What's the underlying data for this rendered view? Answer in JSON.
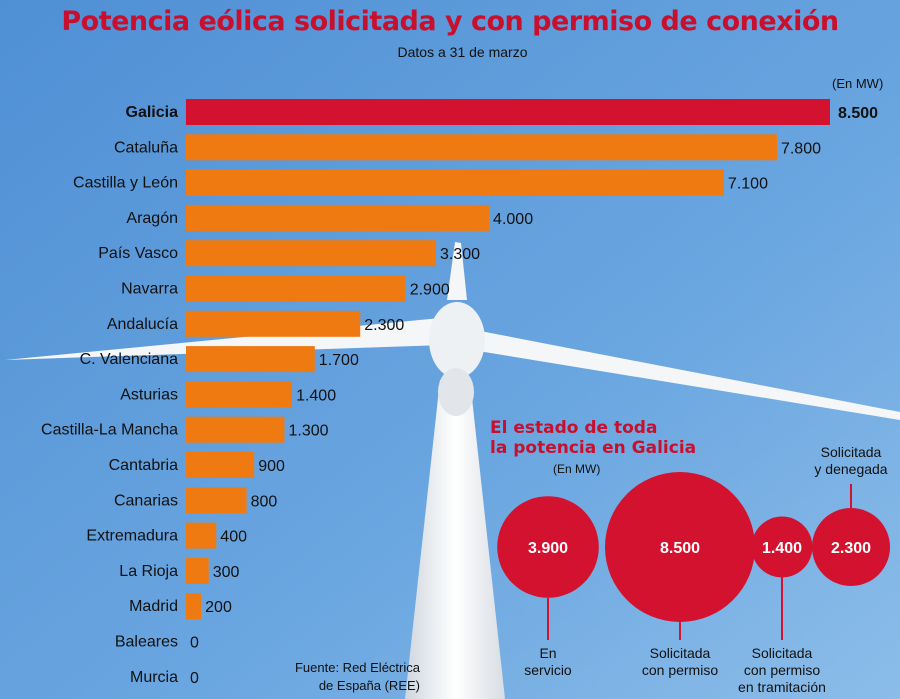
{
  "title": "Potencia eólica solicitada y con permiso de conexión",
  "subtitle": "Datos a 31 de marzo",
  "unit": "(En MW)",
  "source_line1": "Fuente: Red Eléctrica",
  "source_line2": "de España (REE)",
  "colors": {
    "highlight": "#d2122e",
    "bar": "#f07a12",
    "title": "#c8102e",
    "sky": "#5a9ad8"
  },
  "chart_data": {
    "type": "bar",
    "orientation": "horizontal",
    "categories": [
      "Galicia",
      "Cataluña",
      "Castilla y León",
      "Aragón",
      "País Vasco",
      "Navarra",
      "Andalucía",
      "C. Valenciana",
      "Asturias",
      "Castilla-La Mancha",
      "Cantabria",
      "Canarias",
      "Extremadura",
      "La Rioja",
      "Madrid",
      "Baleares",
      "Murcia"
    ],
    "values": [
      8500,
      7800,
      7100,
      4000,
      3300,
      2900,
      2300,
      1700,
      1400,
      1300,
      900,
      800,
      400,
      300,
      200,
      0,
      0
    ],
    "value_labels": [
      "8.500",
      "7.800",
      "7.100",
      "4.000",
      "3.300",
      "2.900",
      "2.300",
      "1.700",
      "1.400",
      "1.300",
      "900",
      "800",
      "400",
      "300",
      "200",
      "0",
      "0"
    ],
    "highlight": "Galicia",
    "xlim": [
      0,
      8500
    ],
    "grid": false
  },
  "galicia": {
    "title_line1": "El estado de toda",
    "title_line2": "la potencia en Galicia",
    "unit": "(En MW)",
    "circles": [
      {
        "value": 3900,
        "label": "3.900",
        "caption": [
          "En",
          "servicio"
        ]
      },
      {
        "value": 8500,
        "label": "8.500",
        "caption": [
          "Solicitada",
          "con permiso"
        ]
      },
      {
        "value": 1400,
        "label": "1.400",
        "caption": [
          "Solicitada",
          "con permiso",
          "en tramitación"
        ]
      },
      {
        "value": 2300,
        "label": "2.300",
        "caption": [
          "Solicitada",
          "y denegada"
        ]
      }
    ]
  }
}
